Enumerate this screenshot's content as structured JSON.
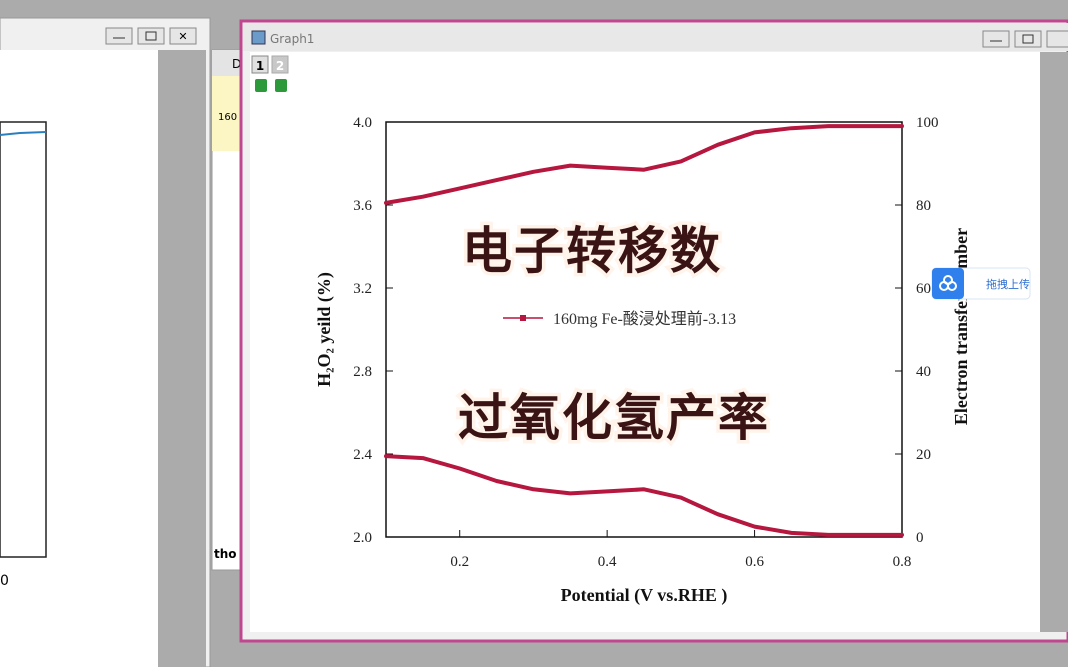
{
  "windows": {
    "graph_title": "Graph1",
    "layer_tabs": [
      "1",
      "2"
    ],
    "worksheet_column": "D",
    "worksheet_cell": "160",
    "worksheet_footer": "tho",
    "left_axis_label": "0"
  },
  "overlay": {
    "captions": [
      "电子转移数",
      "过氧化氢产率"
    ],
    "upload_widget": "拖拽上传"
  },
  "chart_data": {
    "type": "line",
    "xlabel": "Potential (V vs.RHE )",
    "ylabel": "H₂O₂ yeild (%)",
    "y2label": "Electron transfer number",
    "x": [
      0.1,
      0.15,
      0.2,
      0.25,
      0.3,
      0.35,
      0.4,
      0.45,
      0.5,
      0.55,
      0.6,
      0.65,
      0.7,
      0.75,
      0.8
    ],
    "series": [
      {
        "name": "160mg Fe-酸浸处理前-3.13",
        "color": "#b5173f",
        "values": [
          3.61,
          3.64,
          3.68,
          3.72,
          3.76,
          3.79,
          3.78,
          3.77,
          3.81,
          3.89,
          3.95,
          3.97,
          3.98,
          3.98,
          3.98
        ]
      },
      {
        "color": "#b5173f",
        "axis": "y2",
        "values": [
          19.5,
          19,
          16.5,
          13.5,
          11.5,
          10.5,
          11,
          11.5,
          9.5,
          5.5,
          2.5,
          1,
          0.5,
          0.5,
          0.5
        ]
      }
    ],
    "xlim": [
      0.1,
      0.8
    ],
    "xticks": [
      0.2,
      0.4,
      0.6,
      0.8
    ],
    "ylim": [
      2.0,
      4.0
    ],
    "yticks": [
      {
        "value": 2.0,
        "label": "2.0"
      },
      2.4,
      2.8,
      3.2,
      3.6,
      {
        "value": 4.0,
        "label": "4.0"
      }
    ],
    "y2lim": [
      0,
      100
    ],
    "y2ticks": [
      0,
      20,
      40,
      60,
      80,
      100
    ],
    "grid": false
  }
}
